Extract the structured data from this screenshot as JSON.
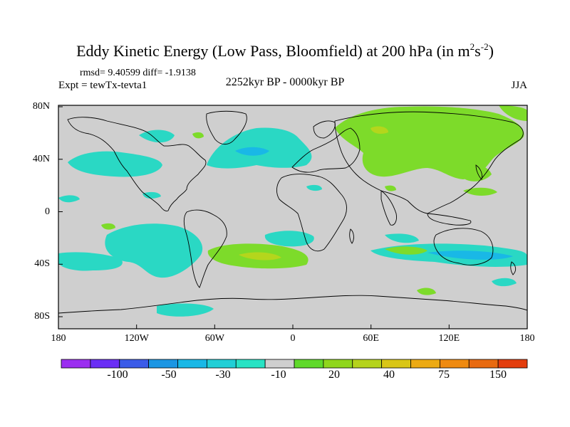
{
  "title": {
    "main": "Eddy Kinetic Energy (Low Pass, Bloomfield) at 200 hPa (in m",
    "sup1": "2",
    "mid": "s",
    "sup2": "-2",
    "end": ")"
  },
  "stats": "rmsd= 9.40599 diff= -1.9138",
  "experiment": "Expt = tewTx-tevta1",
  "period": "2252kyr BP - 0000kyr BP",
  "season": "JJA",
  "axes": {
    "x_ticks": [
      "180",
      "120W",
      "60W",
      "0",
      "60E",
      "120E",
      "180"
    ],
    "y_ticks": [
      "80N",
      "40N",
      "0",
      "40S",
      "80S"
    ]
  },
  "colorbar": {
    "labels": [
      "-100",
      "-50",
      "-30",
      "-10",
      "20",
      "40",
      "75",
      "150"
    ],
    "colors": [
      "#9b2ef0",
      "#6a2ef5",
      "#3b5be8",
      "#1c96e3",
      "#19b8e6",
      "#21cfd6",
      "#28e3c4",
      "#cfcfcf",
      "#5fd92a",
      "#8fd61c",
      "#b5d31c",
      "#d9c616",
      "#ecaa13",
      "#ef8a10",
      "#e86a10",
      "#e33d0d"
    ]
  },
  "map_colors": {
    "background": "#cfcfcf",
    "positive": "#7ddb2a",
    "positive_strong": "#b4d61c",
    "negative": "#2ad8c4",
    "negative_strong": "#19b8e6",
    "coast": "#000000"
  }
}
